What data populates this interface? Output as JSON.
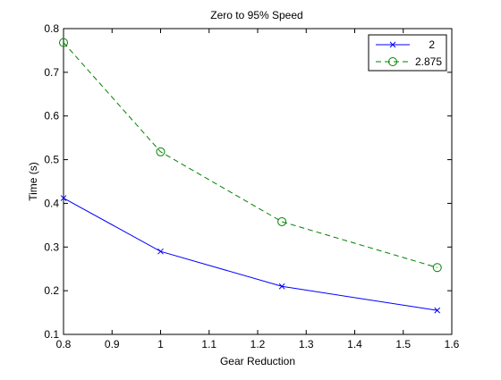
{
  "chart_data": {
    "type": "line",
    "title": "Zero to 95% Speed",
    "xlabel": "Gear Reduction",
    "ylabel": "Time (s)",
    "xlim": [
      0.8,
      1.6
    ],
    "ylim": [
      0.1,
      0.8
    ],
    "xticks": [
      "0.8",
      "0.9",
      "1",
      "1.1",
      "1.2",
      "1.3",
      "1.4",
      "1.5",
      "1.6"
    ],
    "yticks": [
      "0.1",
      "0.2",
      "0.3",
      "0.4",
      "0.5",
      "0.6",
      "0.7",
      "0.8"
    ],
    "grid": false,
    "legend_position": "top-right",
    "series": [
      {
        "name": "2",
        "color": "#0000ff",
        "line_style": "solid",
        "marker": "x",
        "x": [
          0.8,
          1.0,
          1.25,
          1.57
        ],
        "y": [
          0.412,
          0.29,
          0.21,
          0.155
        ]
      },
      {
        "name": "2.875",
        "color": "#008000",
        "line_style": "dashed",
        "marker": "o",
        "x": [
          0.8,
          1.0,
          1.25,
          1.57
        ],
        "y": [
          0.768,
          0.518,
          0.358,
          0.253
        ]
      }
    ]
  }
}
